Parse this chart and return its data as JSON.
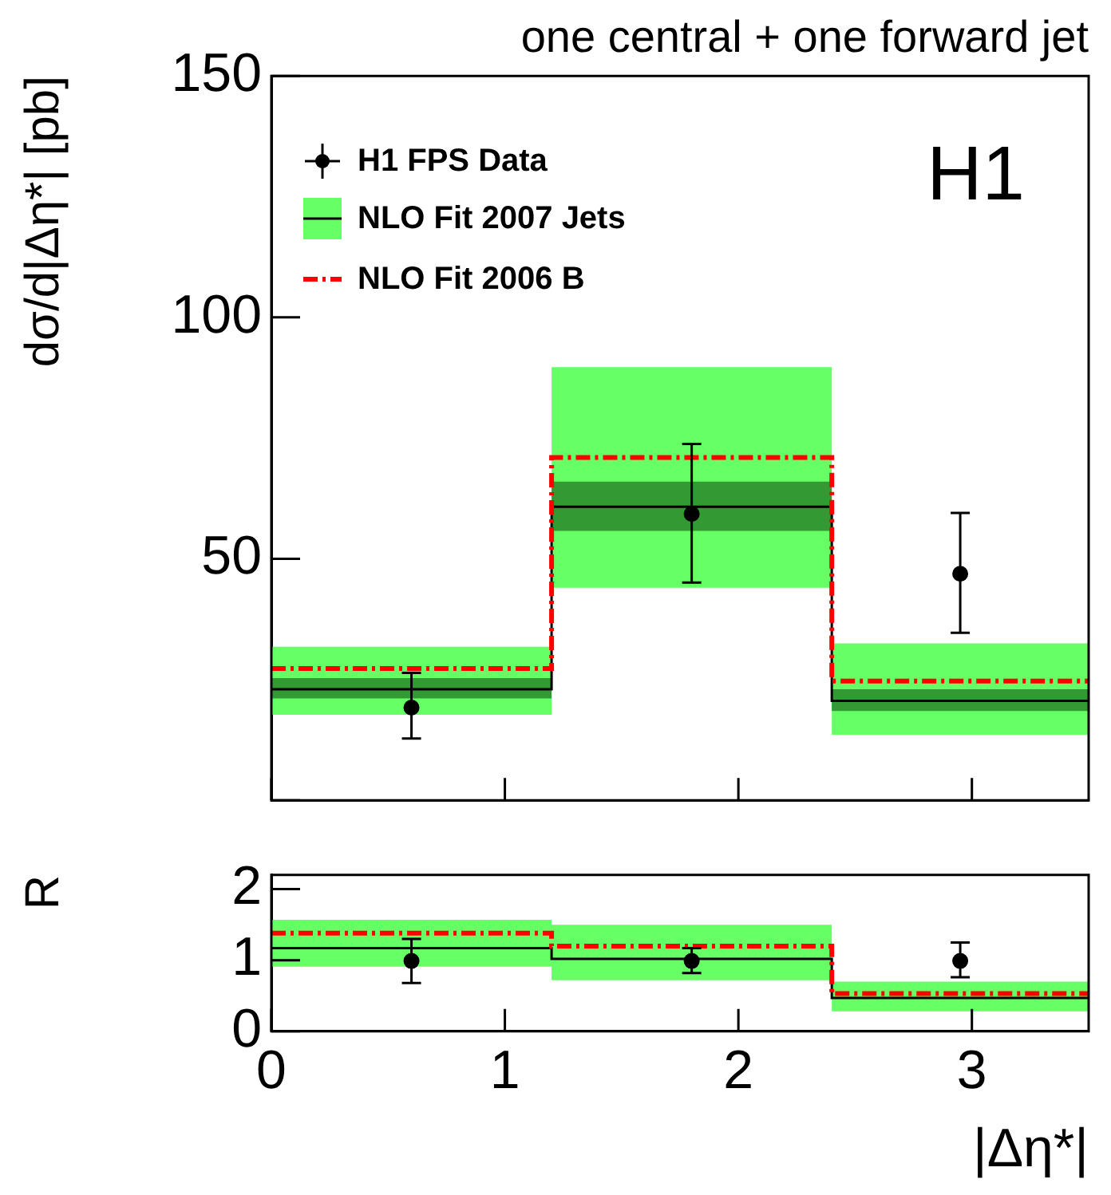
{
  "chart_data": [
    {
      "type": "step",
      "title": "one central + one forward jet",
      "ylabel": "dσ/d|Δη*| [pb]",
      "xlim": [
        0,
        3.5
      ],
      "xticks": [
        0,
        1,
        2,
        3
      ],
      "ylim": [
        0,
        150
      ],
      "yticks": [
        {
          "value": 0,
          "label": null
        },
        50,
        100,
        150
      ],
      "tick_labels": "y",
      "legend": "top left",
      "annotations": [
        "H1"
      ],
      "series": [
        {
          "name": "H1 FPS Data",
          "type": "scatter",
          "marker": "circle",
          "color": "#000000",
          "x": [
            0.6,
            1.8,
            2.95
          ],
          "values": [
            19.2,
            59.3,
            46.9
          ],
          "errors": [
            [
              12.8,
              26.4
            ],
            [
              45.1,
              73.8
            ],
            [
              34.7,
              59.5
            ]
          ]
        },
        {
          "name": "NLO Fit 2007 Jets",
          "type": "step",
          "color": "#000000",
          "x": [
            0,
            1.2,
            2.4,
            3.5
          ],
          "values": [
            23,
            60.8,
            20.6,
            20.6
          ],
          "lower": [
            17.7,
            44,
            13.6,
            13.6
          ],
          "upper": [
            31.8,
            89.7,
            32.5,
            32.5
          ]
        },
        {
          "type": "step",
          "color": "#339933",
          "x": [
            0,
            1.2,
            2.4,
            3.5
          ],
          "values": [
            null,
            null,
            null,
            null
          ],
          "lower": [
            21.1,
            55.8,
            18.5,
            18.5
          ],
          "upper": [
            25.3,
            66,
            23,
            23
          ]
        },
        {
          "name": "NLO Fit 2006 B",
          "type": "step",
          "color": "#ff0000",
          "line_style": "dashed",
          "x": [
            0,
            1.2,
            2.4,
            3.5
          ],
          "values": [
            27.3,
            71,
            24.7,
            24.7
          ]
        }
      ]
    },
    {
      "type": "step",
      "ylabel": "R",
      "xlabel": "|Δη*|",
      "xlim": [
        0,
        3.5
      ],
      "xticks": [
        0,
        1,
        2,
        3
      ],
      "ylim": [
        0,
        2.2
      ],
      "yticks": [
        0,
        1,
        2
      ],
      "series": [
        {
          "type": "scatter",
          "marker": "circle",
          "color": "#000000",
          "x": [
            0.6,
            1.8,
            2.95
          ],
          "values": [
            0.99,
            0.99,
            0.99
          ],
          "errors": [
            [
              0.68,
              1.3
            ],
            [
              0.82,
              1.17
            ],
            [
              0.76,
              1.25
            ]
          ]
        },
        {
          "type": "step",
          "color": "#000000",
          "x": [
            0,
            1.2,
            2.4,
            3.5
          ],
          "values": [
            1.17,
            1.02,
            0.47,
            0.47
          ],
          "lower": [
            0.91,
            0.72,
            0.28,
            0.28
          ],
          "upper": [
            1.57,
            1.5,
            0.7,
            0.7
          ]
        },
        {
          "type": "step",
          "color": "#ff0000",
          "line_style": "dashed",
          "x": [
            0,
            1.2,
            2.4,
            3.5
          ],
          "values": [
            1.38,
            1.2,
            0.53,
            0.53
          ]
        }
      ]
    }
  ]
}
